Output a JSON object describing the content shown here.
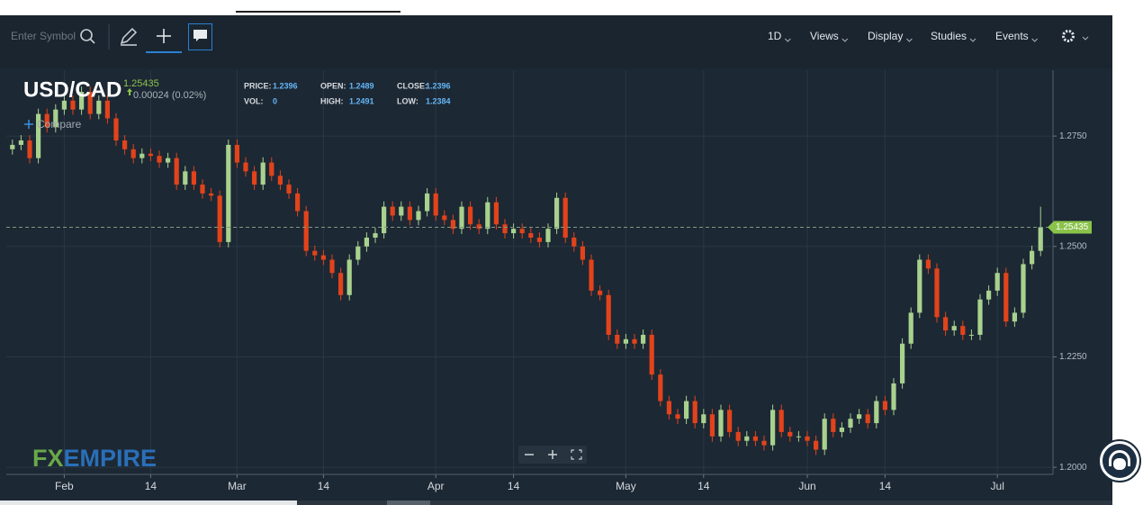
{
  "toolbar": {
    "search_placeholder": "Enter Symbol",
    "menus": [
      "1D",
      "Views",
      "Display",
      "Studies",
      "Events"
    ]
  },
  "logo": [
    "FX",
    "EMPIRE"
  ],
  "chart_data": {
    "type": "candlestick",
    "symbol": "USD/CAD",
    "last": 1.25435,
    "change": "0.00024 (0.02%)",
    "compare": "Compare",
    "quote": {
      "price_label": "PRICE:",
      "price": 1.2396,
      "open_label": "OPEN:",
      "open": 1.2489,
      "close_label": "CLOSE:",
      "close": 1.2396,
      "vol_label": "VOL:",
      "vol": 0,
      "high_label": "HIGH:",
      "high": 1.2491,
      "low_label": "LOW:",
      "low": 1.2384
    },
    "up_color": "#a9d18e",
    "down_color": "#e2431b",
    "categories": [
      null,
      null,
      null,
      null,
      null,
      null,
      "Feb",
      null,
      null,
      null,
      null,
      null,
      null,
      null,
      null,
      null,
      "14",
      null,
      null,
      null,
      null,
      null,
      null,
      null,
      null,
      null,
      "Mar",
      null,
      null,
      null,
      null,
      null,
      null,
      null,
      null,
      null,
      "14",
      null,
      null,
      null,
      null,
      null,
      null,
      null,
      null,
      null,
      null,
      null,
      null,
      "Apr",
      null,
      null,
      null,
      null,
      null,
      null,
      null,
      null,
      "14",
      null,
      null,
      null,
      null,
      null,
      null,
      null,
      null,
      null,
      null,
      null,
      null,
      "May",
      null,
      null,
      null,
      null,
      null,
      null,
      null,
      null,
      "14",
      null,
      null,
      null,
      null,
      null,
      null,
      null,
      null,
      null,
      null,
      null,
      "Jun",
      null,
      null,
      null,
      null,
      null,
      null,
      null,
      null,
      "14",
      null,
      null,
      null,
      null,
      null,
      null,
      null,
      null,
      null,
      null,
      null,
      null,
      "Jul",
      null,
      null,
      null,
      null,
      null
    ],
    "open": [
      1.272,
      1.273,
      1.274,
      1.27,
      1.28,
      1.277,
      1.281,
      1.283,
      1.281,
      1.285,
      1.28,
      1.283,
      1.279,
      1.274,
      1.272,
      1.27,
      1.271,
      1.2705,
      1.269,
      1.27,
      1.264,
      1.267,
      1.264,
      1.262,
      1.2615,
      1.251,
      1.273,
      1.269,
      1.267,
      1.264,
      1.269,
      1.266,
      1.264,
      1.262,
      1.258,
      1.249,
      1.248,
      1.247,
      1.244,
      1.239,
      1.247,
      1.25,
      1.252,
      1.253,
      1.259,
      1.257,
      1.259,
      1.256,
      1.258,
      1.262,
      1.257,
      1.256,
      1.254,
      1.259,
      1.255,
      1.254,
      1.26,
      1.255,
      1.253,
      1.254,
      1.253,
      1.252,
      1.251,
      1.254,
      1.261,
      1.252,
      1.25,
      1.247,
      1.24,
      1.239,
      1.23,
      1.228,
      1.229,
      1.228,
      1.23,
      1.221,
      1.215,
      1.212,
      1.211,
      1.215,
      1.21,
      1.212,
      1.207,
      1.213,
      1.208,
      1.206,
      1.207,
      1.206,
      1.205,
      1.213,
      1.208,
      1.207,
      1.207,
      1.206,
      1.204,
      1.211,
      1.208,
      1.209,
      1.211,
      1.212,
      1.21,
      1.215,
      1.213,
      1.219,
      1.228,
      1.235,
      1.247,
      1.245,
      1.234,
      1.231,
      1.232,
      1.23,
      1.23,
      1.238,
      1.24,
      1.244,
      1.233,
      1.235,
      1.246,
      1.249
    ],
    "high": [
      1.2742,
      1.2752,
      1.2752,
      1.2812,
      1.2812,
      1.2822,
      1.2842,
      1.2842,
      1.2862,
      1.2862,
      1.2842,
      1.2842,
      1.2802,
      1.2752,
      1.2732,
      1.2722,
      1.2722,
      1.2717,
      1.2712,
      1.2712,
      1.2682,
      1.2682,
      1.2652,
      1.2632,
      1.2627,
      1.2742,
      1.2742,
      1.2702,
      1.2682,
      1.2702,
      1.2702,
      1.2672,
      1.2652,
      1.2632,
      1.2592,
      1.2502,
      1.2492,
      1.2482,
      1.2452,
      1.2482,
      1.2512,
      1.2532,
      1.2542,
      1.2602,
      1.2602,
      1.2602,
      1.2602,
      1.2592,
      1.2632,
      1.2632,
      1.2582,
      1.2572,
      1.2602,
      1.2602,
      1.2562,
      1.2612,
      1.2612,
      1.2562,
      1.2552,
      1.2552,
      1.2542,
      1.2532,
      1.2552,
      1.2622,
      1.2622,
      1.2532,
      1.2512,
      1.2482,
      1.2412,
      1.2402,
      1.2312,
      1.2302,
      1.2302,
      1.2312,
      1.2312,
      1.2222,
      1.2162,
      1.2132,
      1.2162,
      1.2162,
      1.2132,
      1.2132,
      1.2142,
      1.2142,
      1.2092,
      1.2082,
      1.2082,
      1.2072,
      1.2142,
      1.2142,
      1.2092,
      1.2082,
      1.2082,
      1.2072,
      1.2122,
      1.2122,
      1.2102,
      1.2122,
      1.2132,
      1.2132,
      1.2162,
      1.2162,
      1.2202,
      1.2292,
      1.2362,
      1.2482,
      1.2482,
      1.2462,
      1.2352,
      1.2332,
      1.2332,
      1.2312,
      1.2392,
      1.2412,
      1.2452,
      1.2452,
      1.2362,
      1.2472,
      1.2502,
      1.259
    ],
    "low": [
      1.2708,
      1.2718,
      1.2688,
      1.2688,
      1.2758,
      1.2758,
      1.2798,
      1.2798,
      1.2798,
      1.2788,
      1.2788,
      1.2778,
      1.2728,
      1.2708,
      1.2688,
      1.2688,
      1.2693,
      1.2678,
      1.2678,
      1.2628,
      1.2628,
      1.2628,
      1.2608,
      1.2603,
      1.2498,
      1.2498,
      1.2678,
      1.2658,
      1.2628,
      1.2628,
      1.2648,
      1.2628,
      1.2608,
      1.2568,
      1.2478,
      1.2468,
      1.2458,
      1.2428,
      1.2378,
      1.2378,
      1.2458,
      1.2488,
      1.2508,
      1.2518,
      1.2558,
      1.2558,
      1.2548,
      1.2548,
      1.2568,
      1.2558,
      1.2548,
      1.2528,
      1.2528,
      1.2538,
      1.2528,
      1.2528,
      1.2538,
      1.2518,
      1.2518,
      1.2518,
      1.2508,
      1.2498,
      1.2498,
      1.2528,
      1.2508,
      1.2488,
      1.2458,
      1.2388,
      1.2378,
      1.2288,
      1.2268,
      1.2268,
      1.2268,
      1.2268,
      1.2198,
      1.2138,
      1.2108,
      1.2098,
      1.2098,
      1.2088,
      1.2088,
      1.2058,
      1.2058,
      1.2068,
      1.2048,
      1.2048,
      1.2048,
      1.2038,
      1.2038,
      1.2068,
      1.2058,
      1.2058,
      1.2048,
      1.2028,
      1.2028,
      1.2068,
      1.2068,
      1.2078,
      1.2098,
      1.2088,
      1.2088,
      1.2118,
      1.2118,
      1.2178,
      1.2268,
      1.2338,
      1.2438,
      1.2328,
      1.2298,
      1.2298,
      1.2288,
      1.2288,
      1.2288,
      1.2368,
      1.2388,
      1.2318,
      1.2318,
      1.2338,
      1.2448,
      1.2478
    ],
    "close": [
      1.273,
      1.274,
      1.27,
      1.28,
      1.277,
      1.281,
      1.283,
      1.281,
      1.285,
      1.28,
      1.283,
      1.279,
      1.274,
      1.272,
      1.27,
      1.271,
      1.2705,
      1.269,
      1.27,
      1.264,
      1.267,
      1.264,
      1.262,
      1.2615,
      1.251,
      1.273,
      1.269,
      1.267,
      1.264,
      1.269,
      1.266,
      1.264,
      1.262,
      1.258,
      1.249,
      1.248,
      1.247,
      1.244,
      1.239,
      1.247,
      1.25,
      1.252,
      1.253,
      1.259,
      1.257,
      1.259,
      1.256,
      1.258,
      1.262,
      1.257,
      1.256,
      1.254,
      1.259,
      1.255,
      1.254,
      1.26,
      1.255,
      1.253,
      1.254,
      1.253,
      1.252,
      1.251,
      1.254,
      1.261,
      1.252,
      1.25,
      1.247,
      1.24,
      1.239,
      1.23,
      1.228,
      1.229,
      1.228,
      1.23,
      1.221,
      1.215,
      1.212,
      1.211,
      1.215,
      1.21,
      1.212,
      1.207,
      1.213,
      1.208,
      1.206,
      1.207,
      1.206,
      1.205,
      1.213,
      1.208,
      1.207,
      1.207,
      1.206,
      1.204,
      1.211,
      1.208,
      1.209,
      1.211,
      1.212,
      1.21,
      1.215,
      1.213,
      1.219,
      1.228,
      1.235,
      1.247,
      1.245,
      1.234,
      1.231,
      1.232,
      1.23,
      1.23,
      1.238,
      1.24,
      1.244,
      1.233,
      1.235,
      1.246,
      1.249,
      1.25435
    ],
    "ylim": [
      1.1984,
      1.2899
    ],
    "yticks": [
      {
        "value": 1.2,
        "label": "1.2000"
      },
      {
        "value": 1.225,
        "label": "1.2250"
      },
      {
        "value": 1.25,
        "label": "1.2500"
      },
      {
        "value": 1.275,
        "label": "1.2750"
      }
    ],
    "grid": true
  }
}
